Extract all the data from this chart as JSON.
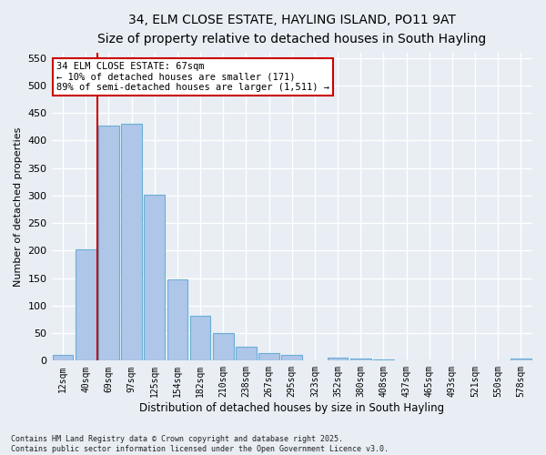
{
  "title1": "34, ELM CLOSE ESTATE, HAYLING ISLAND, PO11 9AT",
  "title2": "Size of property relative to detached houses in South Hayling",
  "xlabel": "Distribution of detached houses by size in South Hayling",
  "ylabel": "Number of detached properties",
  "bar_labels": [
    "12sqm",
    "40sqm",
    "69sqm",
    "97sqm",
    "125sqm",
    "154sqm",
    "182sqm",
    "210sqm",
    "238sqm",
    "267sqm",
    "295sqm",
    "323sqm",
    "352sqm",
    "380sqm",
    "408sqm",
    "437sqm",
    "465sqm",
    "493sqm",
    "521sqm",
    "550sqm",
    "578sqm"
  ],
  "bar_values": [
    10,
    203,
    428,
    430,
    301,
    148,
    81,
    50,
    25,
    13,
    10,
    0,
    6,
    4,
    2,
    1,
    0,
    0,
    0,
    0,
    4
  ],
  "bar_color": "#aec6e8",
  "bar_edge_color": "#6aaed6",
  "vline_color": "#cc0000",
  "ylim": [
    0,
    560
  ],
  "yticks": [
    0,
    50,
    100,
    150,
    200,
    250,
    300,
    350,
    400,
    450,
    500,
    550
  ],
  "annotation_text": "34 ELM CLOSE ESTATE: 67sqm\n← 10% of detached houses are smaller (171)\n89% of semi-detached houses are larger (1,511) →",
  "annotation_box_facecolor": "#ffffff",
  "annotation_box_edgecolor": "#cc0000",
  "footer_text": "Contains HM Land Registry data © Crown copyright and database right 2025.\nContains public sector information licensed under the Open Government Licence v3.0.",
  "bg_color": "#e8eef4",
  "grid_color": "#ffffff",
  "title_fontsize": 10,
  "subtitle_fontsize": 9
}
